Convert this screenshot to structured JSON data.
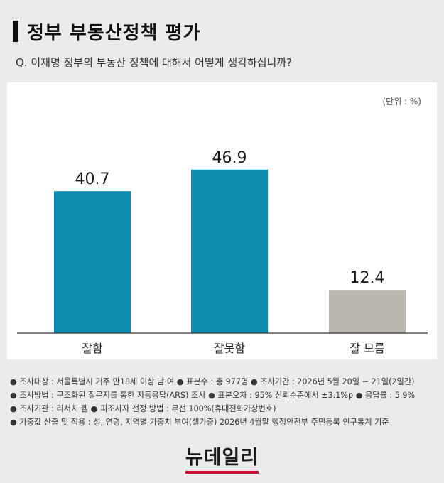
{
  "header": {
    "title": "정부 부동산정책 평가",
    "question": "Q. 이재명 정부의 부동산 정책에 대해서 어떻게 생각하십니까?"
  },
  "unit_label": "(단위 : %)",
  "chart_data": {
    "type": "bar",
    "categories": [
      "잘함",
      "잘못함",
      "잘 모름"
    ],
    "values": [
      40.7,
      46.9,
      12.4
    ],
    "value_labels": [
      "40.7",
      "46.9",
      "12.4"
    ],
    "colors": [
      "#0e8cb0",
      "#0e8cb0",
      "#bdb7b1"
    ],
    "ylim": [
      0,
      55
    ],
    "grid": false,
    "legend": "none"
  },
  "footnotes": [
    "● 조사대상 : 서울특별시 거주 만18세 이상 남·여  ● 표본수 : 총 977명  ● 조사기간 : 2026년 5월 20일 ~ 21일(2일간)",
    "● 조사방법 : 구조화된 질문지를 통한 자동응답(ARS) 조사  ● 표본오차 : 95% 신뢰수준에서 ±3.1%p  ● 응답률 : 5.9%",
    "● 조사기관 : 리서치 웰  ● 피조사자 선정 방법 : 무선 100%(휴대전화가상번호)",
    "● 가중값 산출 및 적용 : 성, 연령, 지역별 가중치 부여(셀가중) 2026년 4월말 행정안전부 주민등록 인구통계 기준"
  ],
  "logo": "뉴데일리"
}
